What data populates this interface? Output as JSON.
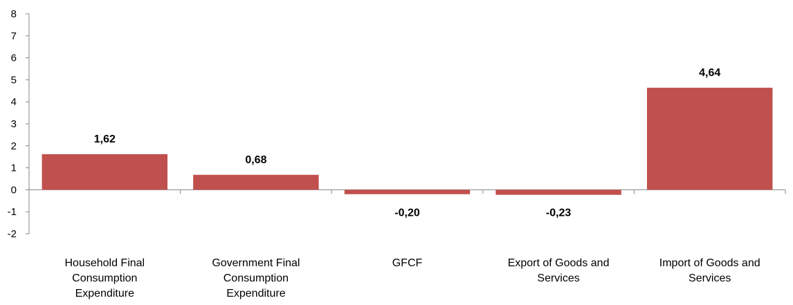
{
  "chart_data": {
    "type": "bar",
    "categories": [
      [
        "Household Final",
        "Consumption",
        "Expenditure"
      ],
      [
        "Government Final",
        "Consumption",
        "Expenditure"
      ],
      [
        "GFCF"
      ],
      [
        "Export of Goods and",
        "Services"
      ],
      [
        "Import of Goods and",
        "Services"
      ]
    ],
    "values": [
      1.62,
      0.68,
      -0.2,
      -0.23,
      4.64
    ],
    "data_labels": [
      "1,62",
      "0,68",
      "-0,20",
      "-0,23",
      "4,64"
    ],
    "ylim": [
      -2,
      8
    ],
    "yticks": [
      8,
      7,
      6,
      5,
      4,
      3,
      2,
      1,
      0,
      -1,
      -2
    ],
    "title": "",
    "xlabel": "",
    "ylabel": "",
    "bar_color": "#C0504D",
    "axis_color": "#868686",
    "grid": false,
    "legend": "none"
  }
}
